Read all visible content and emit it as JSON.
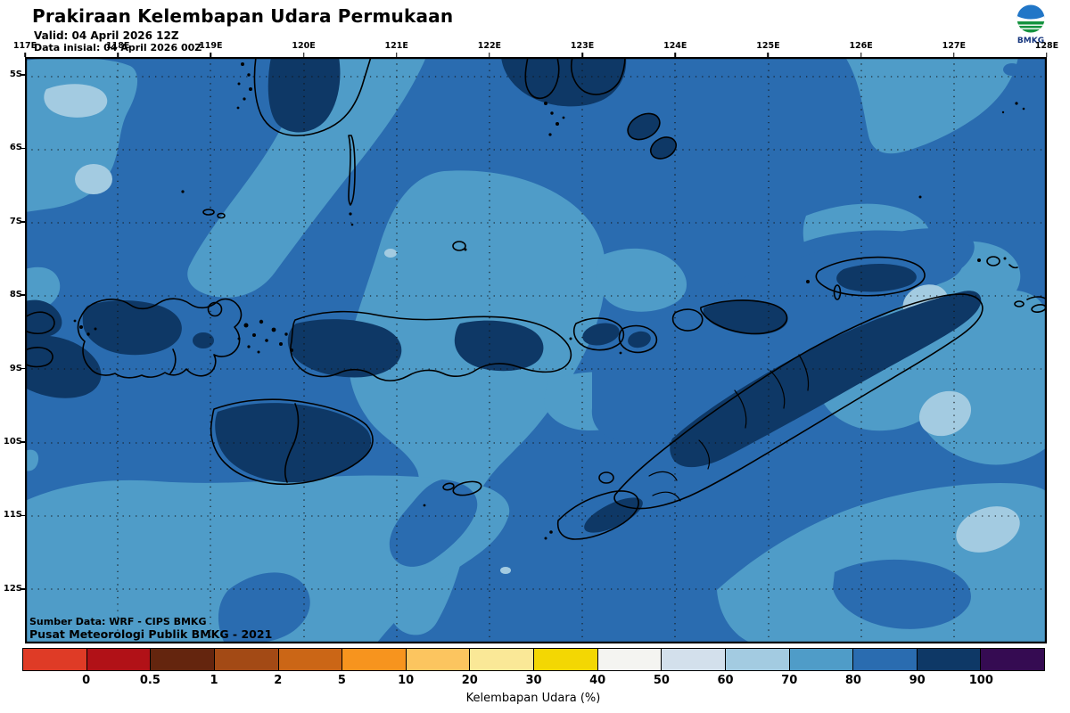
{
  "header": {
    "title": "Prakiraan Kelembapan Udara Permukaan",
    "valid": "Valid: 04 April 2026 12Z",
    "init": "Data inisial: 04 April 2026 00Z"
  },
  "logo": {
    "label": "BMKG"
  },
  "map": {
    "lon_labels": [
      "117E",
      "118E",
      "119E",
      "120E",
      "121E",
      "122E",
      "123E",
      "124E",
      "125E",
      "126E",
      "127E",
      "128E"
    ],
    "lat_labels": [
      "5S",
      "6S",
      "7S",
      "8S",
      "9S",
      "10S",
      "11S",
      "12S"
    ],
    "credit_line1": "Sumber Data: WRF - CIPS BMKG",
    "credit_line2": "Pusat Meteorologi Publik BMKG - 2021"
  },
  "colorbar": {
    "title": "Kelembapan Udara (%)",
    "tick_labels": [
      "0",
      "0.5",
      "1",
      "2",
      "5",
      "10",
      "20",
      "30",
      "40",
      "50",
      "60",
      "70",
      "80",
      "90",
      "100"
    ],
    "segment_colors": [
      "#df3b26",
      "#b11117",
      "#64250e",
      "#a34a15",
      "#cb6616",
      "#f7941e",
      "#fcc55f",
      "#fae897",
      "#f3d703",
      "#f4f4f1",
      "#d3e0ec",
      "#a3cbe1",
      "#4f9cc8",
      "#2a6cb0",
      "#0e3866",
      "#350b52"
    ]
  },
  "map_palette": {
    "rh_60_70": "#a3cbe1",
    "rh_70_80": "#4f9cc8",
    "rh_80_90": "#2a6cb0",
    "rh_90_100": "#0e3866",
    "coastline": "#000000"
  }
}
